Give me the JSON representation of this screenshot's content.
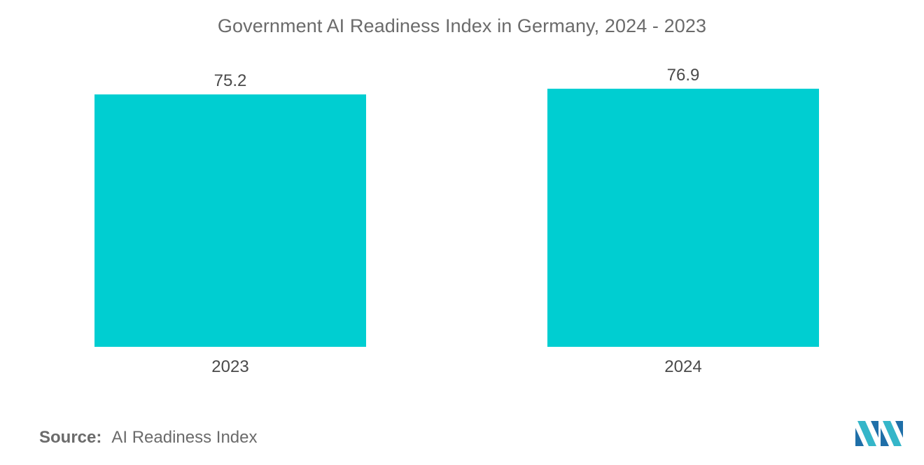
{
  "chart_data": {
    "type": "bar",
    "title": "Government AI Readiness Index in Germany, 2024 - 2023",
    "categories": [
      "2023",
      "2024"
    ],
    "values": [
      75.2,
      76.9
    ],
    "value_labels": [
      "75.2",
      "76.9"
    ],
    "xlabel": "",
    "ylabel": "",
    "ylim": [
      0,
      80
    ],
    "grid": false,
    "legend": "none",
    "bar_color": "#00CED1"
  },
  "source": {
    "label": "Source:",
    "text": "AI Readiness Index"
  },
  "logo": {
    "icon": "mordor-intelligence-logo-icon",
    "colors": [
      "#1f6fa8",
      "#35b6c9"
    ]
  }
}
